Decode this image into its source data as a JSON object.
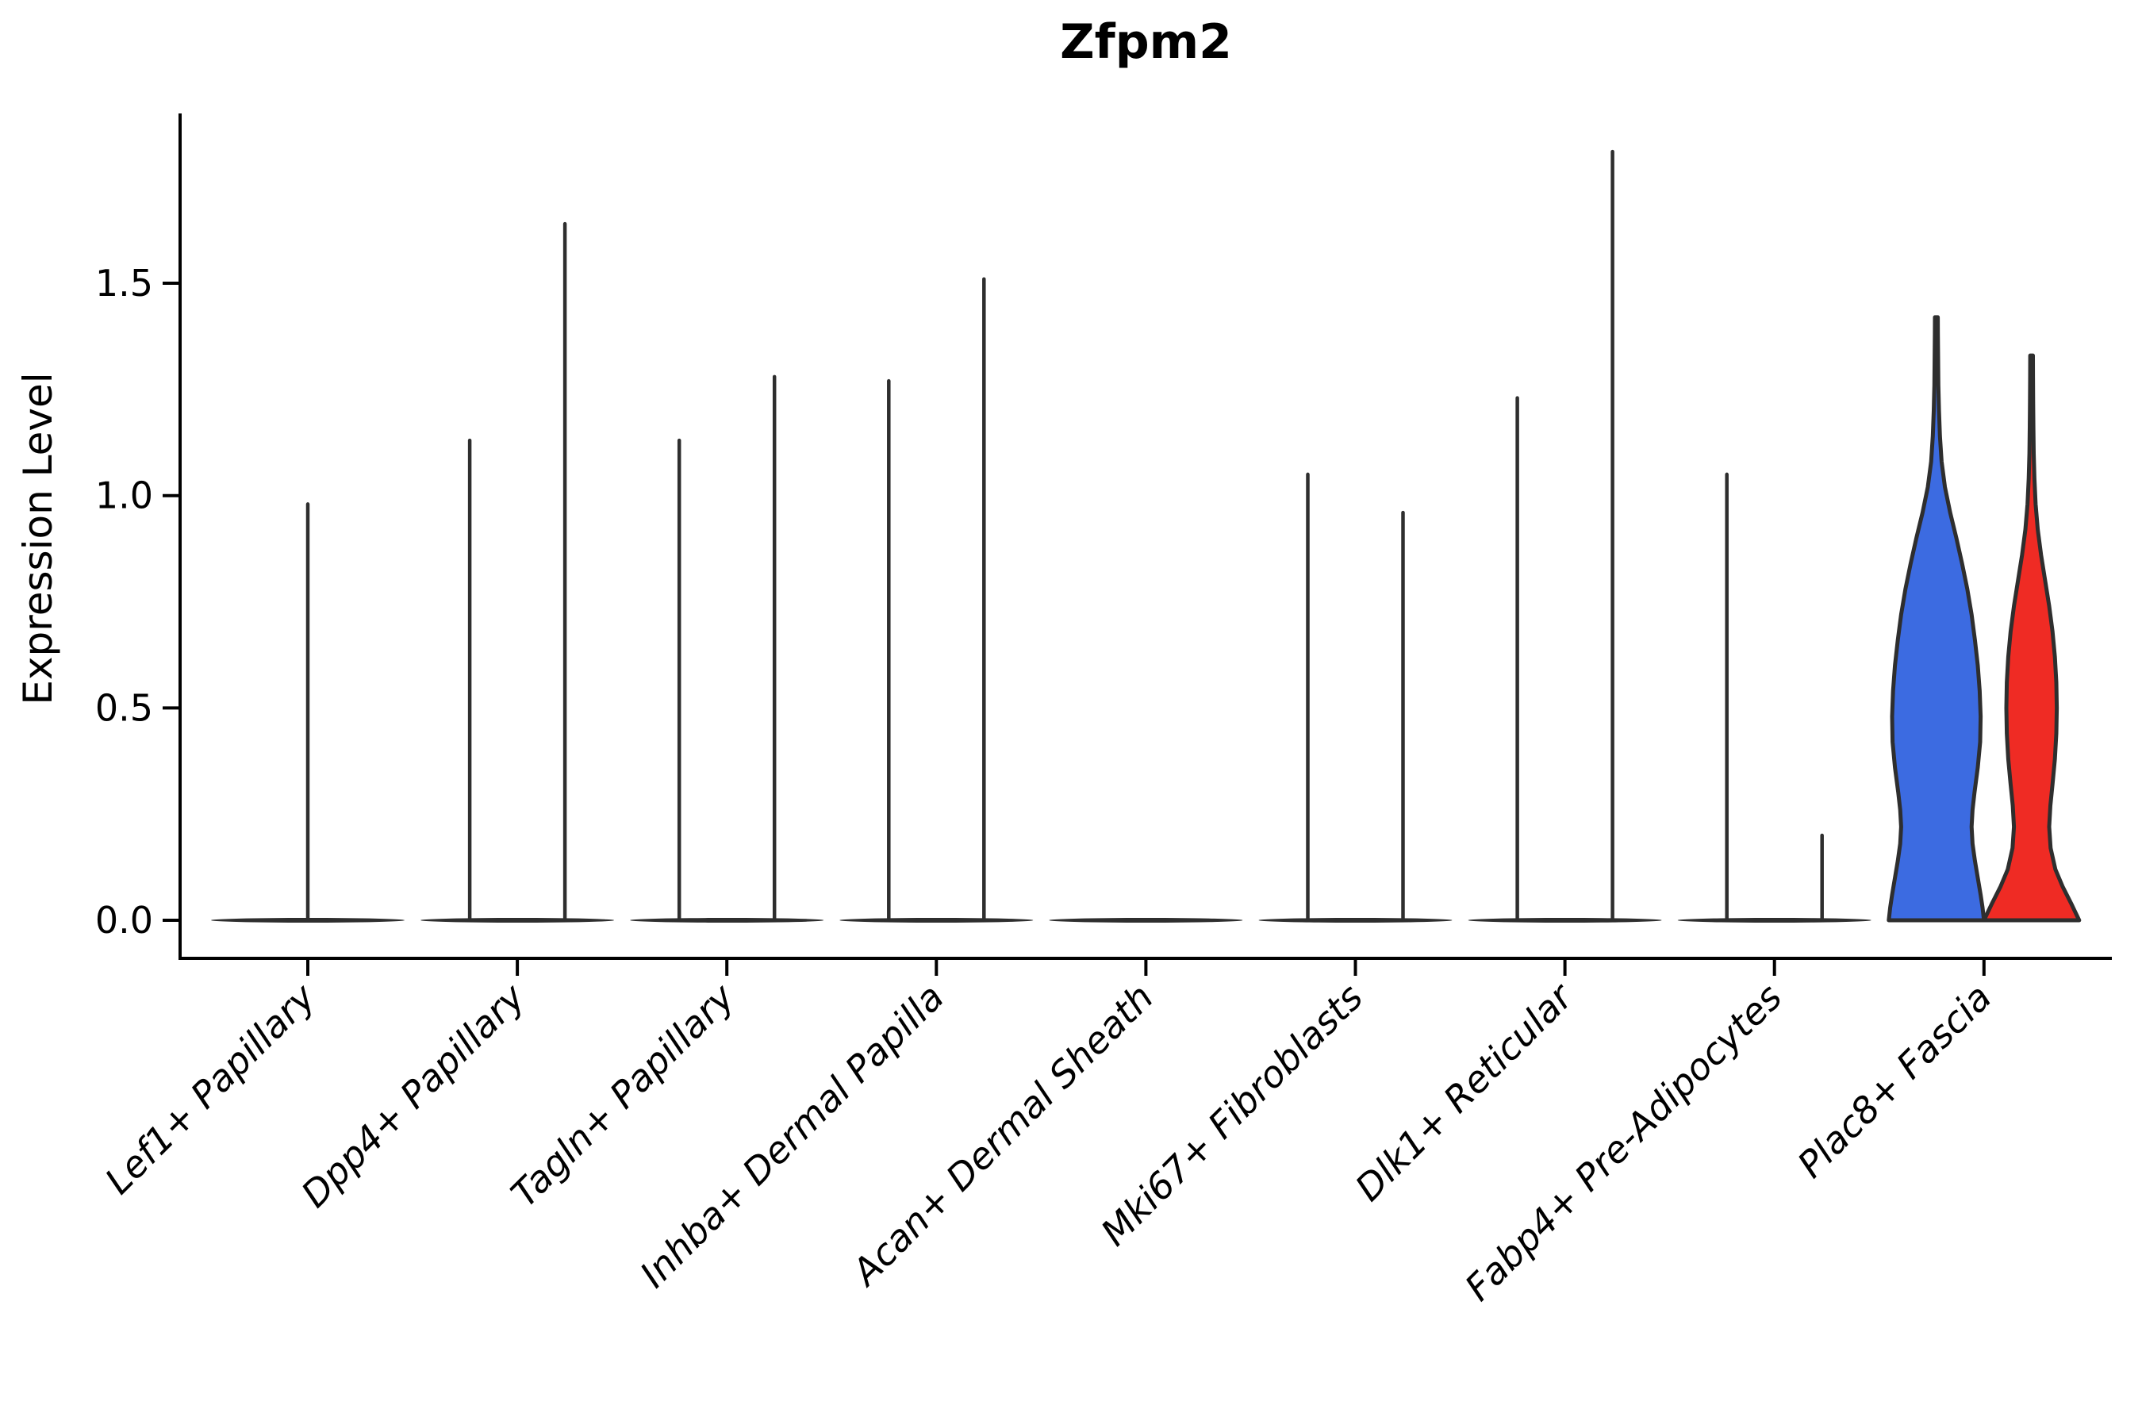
{
  "title": "Zfpm2",
  "ylabel": "Expression Level",
  "chart_data": {
    "type": "violin",
    "title": "Zfpm2",
    "xlabel": "",
    "ylabel": "Expression Level",
    "yticks": [
      "0.0",
      "0.5",
      "1.0",
      "1.5"
    ],
    "ytick_values": [
      0.0,
      0.5,
      1.0,
      1.5
    ],
    "ylim": [
      -0.09,
      1.9
    ],
    "grid": false,
    "legend": "none",
    "categories": [
      "Lef1+ Papillary",
      "Dpp4+ Papillary",
      "Tagln+ Papillary",
      "Inhba+ Dermal Papilla",
      "Acan+ Dermal Sheath",
      "Mki67+ Fibroblasts",
      "Dlk1+ Reticular",
      "Fabp4+ Pre-Adipocytes",
      "Plac8+ Fascia"
    ],
    "violins": [
      {
        "category": "Lef1+ Papillary",
        "layout": "single",
        "items": [
          {
            "shape": "spike",
            "max": 0.98
          }
        ]
      },
      {
        "category": "Dpp4+ Papillary",
        "layout": "pair",
        "items": [
          {
            "shape": "spike",
            "max": 1.13
          },
          {
            "shape": "spike",
            "max": 1.64
          }
        ]
      },
      {
        "category": "Tagln+ Papillary",
        "layout": "pair",
        "items": [
          {
            "shape": "spike",
            "max": 1.13
          },
          {
            "shape": "spike",
            "max": 1.28
          }
        ]
      },
      {
        "category": "Inhba+ Dermal Papilla",
        "layout": "pair",
        "items": [
          {
            "shape": "spike",
            "max": 1.27
          },
          {
            "shape": "spike",
            "max": 1.51
          }
        ]
      },
      {
        "category": "Acan+ Dermal Sheath",
        "layout": "pair",
        "items": [
          {
            "shape": "flat",
            "max": 0.0
          },
          {
            "shape": "flat",
            "max": 0.0
          }
        ]
      },
      {
        "category": "Mki67+ Fibroblasts",
        "layout": "pair",
        "items": [
          {
            "shape": "spike",
            "max": 1.05
          },
          {
            "shape": "spike",
            "max": 0.96
          }
        ]
      },
      {
        "category": "Dlk1+ Reticular",
        "layout": "pair",
        "items": [
          {
            "shape": "spike",
            "max": 1.23
          },
          {
            "shape": "spike",
            "max": 1.81
          }
        ]
      },
      {
        "category": "Fabp4+ Pre-Adipocytes",
        "layout": "pair",
        "items": [
          {
            "shape": "spike",
            "max": 1.05
          },
          {
            "shape": "spike",
            "max": 0.2
          }
        ]
      },
      {
        "category": "Plac8+ Fascia",
        "layout": "pair",
        "items": [
          {
            "shape": "density",
            "max": 1.42,
            "fill": "#3C6BE1",
            "profile": [
              [
                1.42,
                0.03
              ],
              [
                1.38,
                0.032
              ],
              [
                1.32,
                0.036
              ],
              [
                1.26,
                0.042
              ],
              [
                1.2,
                0.055
              ],
              [
                1.14,
                0.075
              ],
              [
                1.08,
                0.11
              ],
              [
                1.02,
                0.18
              ],
              [
                0.96,
                0.29
              ],
              [
                0.9,
                0.42
              ],
              [
                0.84,
                0.54
              ],
              [
                0.78,
                0.65
              ],
              [
                0.72,
                0.74
              ],
              [
                0.66,
                0.81
              ],
              [
                0.6,
                0.87
              ],
              [
                0.54,
                0.91
              ],
              [
                0.48,
                0.93
              ],
              [
                0.42,
                0.92
              ],
              [
                0.36,
                0.87
              ],
              [
                0.3,
                0.8
              ],
              [
                0.26,
                0.76
              ],
              [
                0.22,
                0.74
              ],
              [
                0.18,
                0.76
              ],
              [
                0.14,
                0.81
              ],
              [
                0.1,
                0.87
              ],
              [
                0.06,
                0.93
              ],
              [
                0.03,
                0.97
              ],
              [
                0.0,
                1.0
              ]
            ]
          },
          {
            "shape": "density",
            "max": 1.33,
            "fill": "#EF2B24",
            "profile": [
              [
                1.33,
                0.028
              ],
              [
                1.28,
                0.03
              ],
              [
                1.22,
                0.033
              ],
              [
                1.16,
                0.038
              ],
              [
                1.1,
                0.045
              ],
              [
                1.04,
                0.06
              ],
              [
                0.98,
                0.085
              ],
              [
                0.92,
                0.13
              ],
              [
                0.86,
                0.2
              ],
              [
                0.8,
                0.285
              ],
              [
                0.74,
                0.37
              ],
              [
                0.68,
                0.44
              ],
              [
                0.62,
                0.49
              ],
              [
                0.56,
                0.52
              ],
              [
                0.5,
                0.53
              ],
              [
                0.44,
                0.52
              ],
              [
                0.38,
                0.49
              ],
              [
                0.32,
                0.44
              ],
              [
                0.27,
                0.395
              ],
              [
                0.22,
                0.37
              ],
              [
                0.17,
                0.4
              ],
              [
                0.12,
                0.5
              ],
              [
                0.08,
                0.65
              ],
              [
                0.04,
                0.83
              ],
              [
                0.0,
                1.0
              ]
            ]
          }
        ]
      }
    ],
    "colors": {
      "group1_fill": "#3C6BE1",
      "group2_fill": "#EF2B24",
      "outline": "#2E2E2E",
      "axis": "#000000",
      "text": "#000000"
    }
  }
}
